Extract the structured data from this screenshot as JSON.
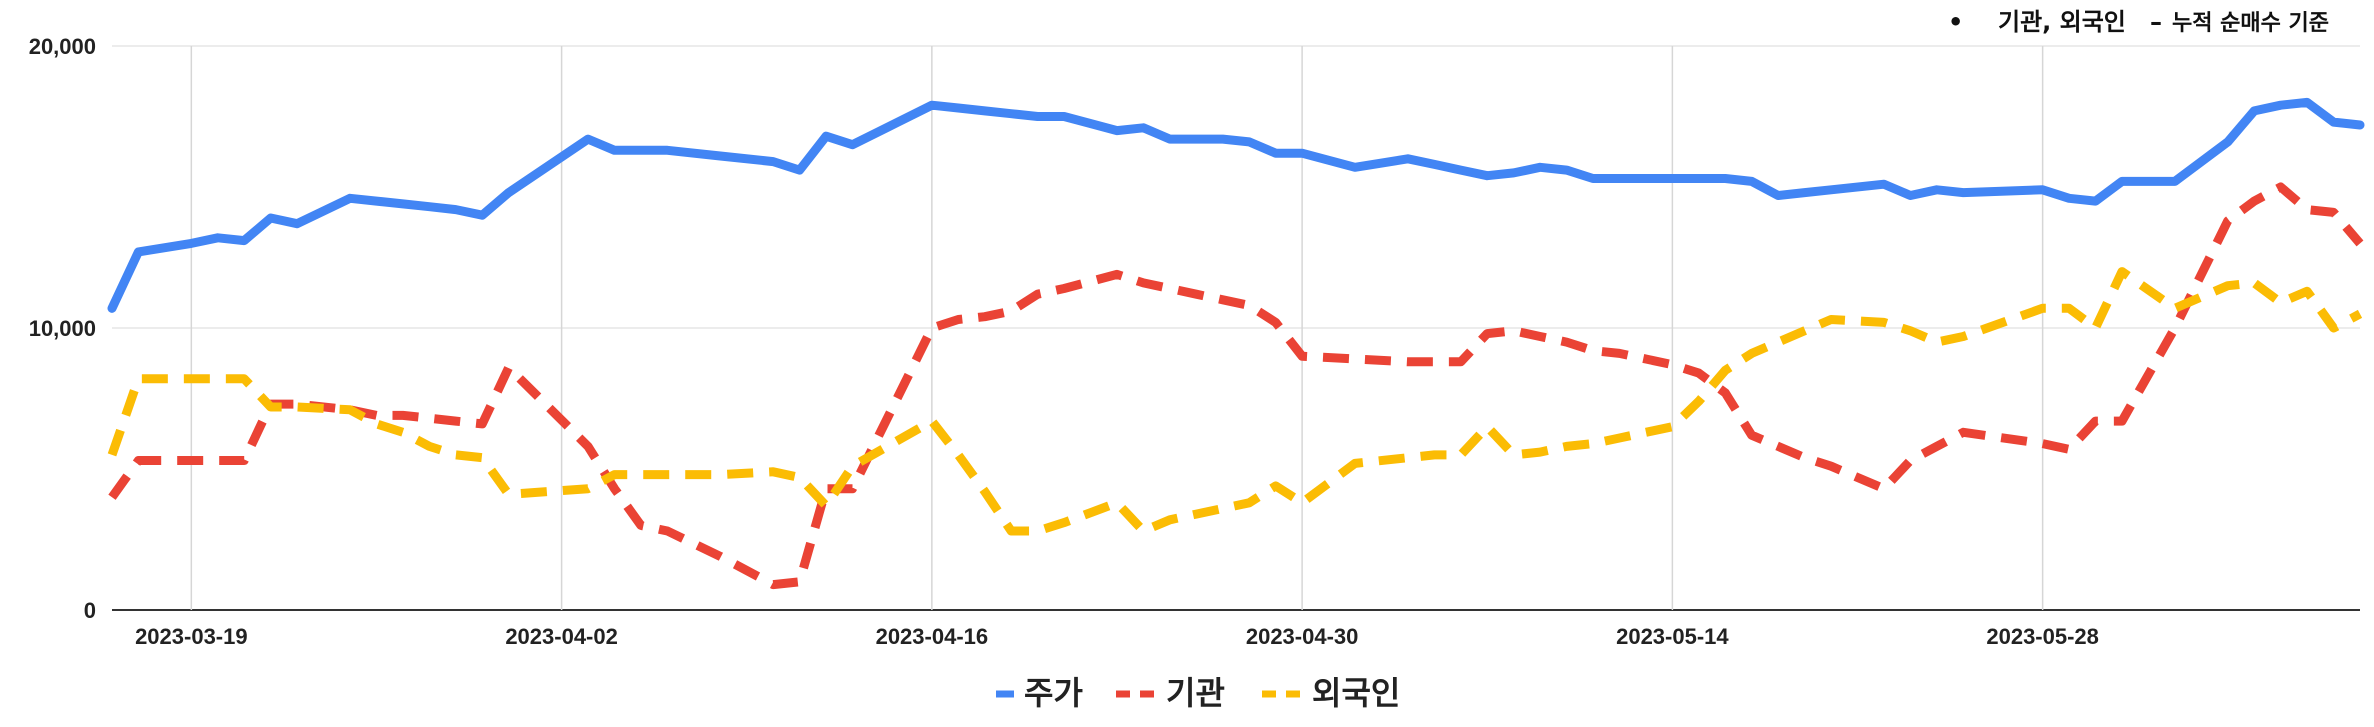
{
  "annotation": {
    "bullet": "•",
    "text": "기관, 외국인",
    "dash": "–",
    "subtext": "누적 순매수 기준"
  },
  "chart_data": {
    "type": "line",
    "x_tick_labels": [
      "2023-03-19",
      "2023-04-02",
      "2023-04-16",
      "2023-04-30",
      "2023-05-14",
      "2023-05-28"
    ],
    "y_tick_labels": [
      "0",
      "10,000",
      "20,000"
    ],
    "ylim": [
      0,
      20000
    ],
    "grid": true,
    "legend_position": "bottom",
    "x": [
      0,
      1,
      3,
      4,
      5,
      6,
      7,
      9,
      10,
      11,
      12,
      13,
      14,
      15,
      18,
      19,
      20,
      21,
      23,
      25,
      26,
      27,
      28,
      31,
      32,
      33,
      34,
      35,
      36,
      38,
      39,
      40,
      41,
      42,
      43,
      44,
      45,
      47,
      49,
      50,
      51,
      52,
      53,
      54,
      55,
      56,
      57,
      58,
      59,
      60,
      61,
      62,
      63,
      64,
      65,
      67,
      68,
      69,
      70,
      73,
      74,
      75,
      76,
      78,
      80,
      81,
      82,
      83,
      84,
      85
    ],
    "series": [
      {
        "name": "주가",
        "color": "#4285F4",
        "dash": "solid",
        "values": [
          10700,
          12700,
          13000,
          13200,
          13100,
          13900,
          13700,
          14600,
          14500,
          14400,
          14300,
          14200,
          14000,
          14800,
          16700,
          16300,
          16300,
          16300,
          16100,
          15900,
          15600,
          16800,
          16500,
          17900,
          17800,
          17700,
          17600,
          17500,
          17500,
          17000,
          17100,
          16700,
          16700,
          16700,
          16600,
          16200,
          16200,
          15700,
          16000,
          15800,
          15600,
          15400,
          15500,
          15700,
          15600,
          15300,
          15300,
          15300,
          15300,
          15300,
          15300,
          15200,
          14700,
          14800,
          14900,
          15100,
          14700,
          14900,
          14800,
          14900,
          14600,
          14500,
          15200,
          15200,
          16600,
          17700,
          17900,
          18000,
          17300,
          17200
        ]
      },
      {
        "name": "기관",
        "color": "#EA4335",
        "dash": "dashed",
        "values": [
          4000,
          5300,
          5300,
          5300,
          5300,
          7300,
          7300,
          7100,
          6900,
          6900,
          6800,
          6700,
          6600,
          8600,
          5800,
          4300,
          3000,
          2800,
          1900,
          900,
          1000,
          4300,
          4300,
          10000,
          10300,
          10400,
          10600,
          11200,
          11400,
          11900,
          11600,
          11400,
          11200,
          11000,
          10800,
          10200,
          9000,
          8900,
          8800,
          8800,
          8800,
          9800,
          9900,
          9700,
          9500,
          9200,
          9100,
          8900,
          8700,
          8400,
          7700,
          6200,
          5800,
          5400,
          5100,
          4300,
          5300,
          5800,
          6300,
          5900,
          5700,
          6700,
          6700,
          10000,
          13800,
          14500,
          15000,
          14200,
          14100,
          13000
        ]
      },
      {
        "name": "외국인",
        "color": "#FBBC04",
        "dash": "dashed",
        "values": [
          5500,
          8200,
          8200,
          8200,
          8200,
          7200,
          7200,
          7100,
          6600,
          6300,
          5800,
          5500,
          5400,
          4100,
          4300,
          4800,
          4800,
          4800,
          4800,
          4900,
          4700,
          3700,
          5100,
          6700,
          5500,
          4200,
          2800,
          2800,
          3100,
          3800,
          2800,
          3200,
          3400,
          3600,
          3800,
          4400,
          3800,
          5200,
          5400,
          5500,
          5500,
          6500,
          5500,
          5600,
          5800,
          5900,
          6100,
          6300,
          6500,
          7400,
          8500,
          9100,
          9500,
          9900,
          10300,
          10200,
          9900,
          9500,
          9700,
          10700,
          10700,
          10000,
          12000,
          10700,
          11500,
          11600,
          10900,
          11300,
          10000,
          10500
        ]
      }
    ]
  }
}
